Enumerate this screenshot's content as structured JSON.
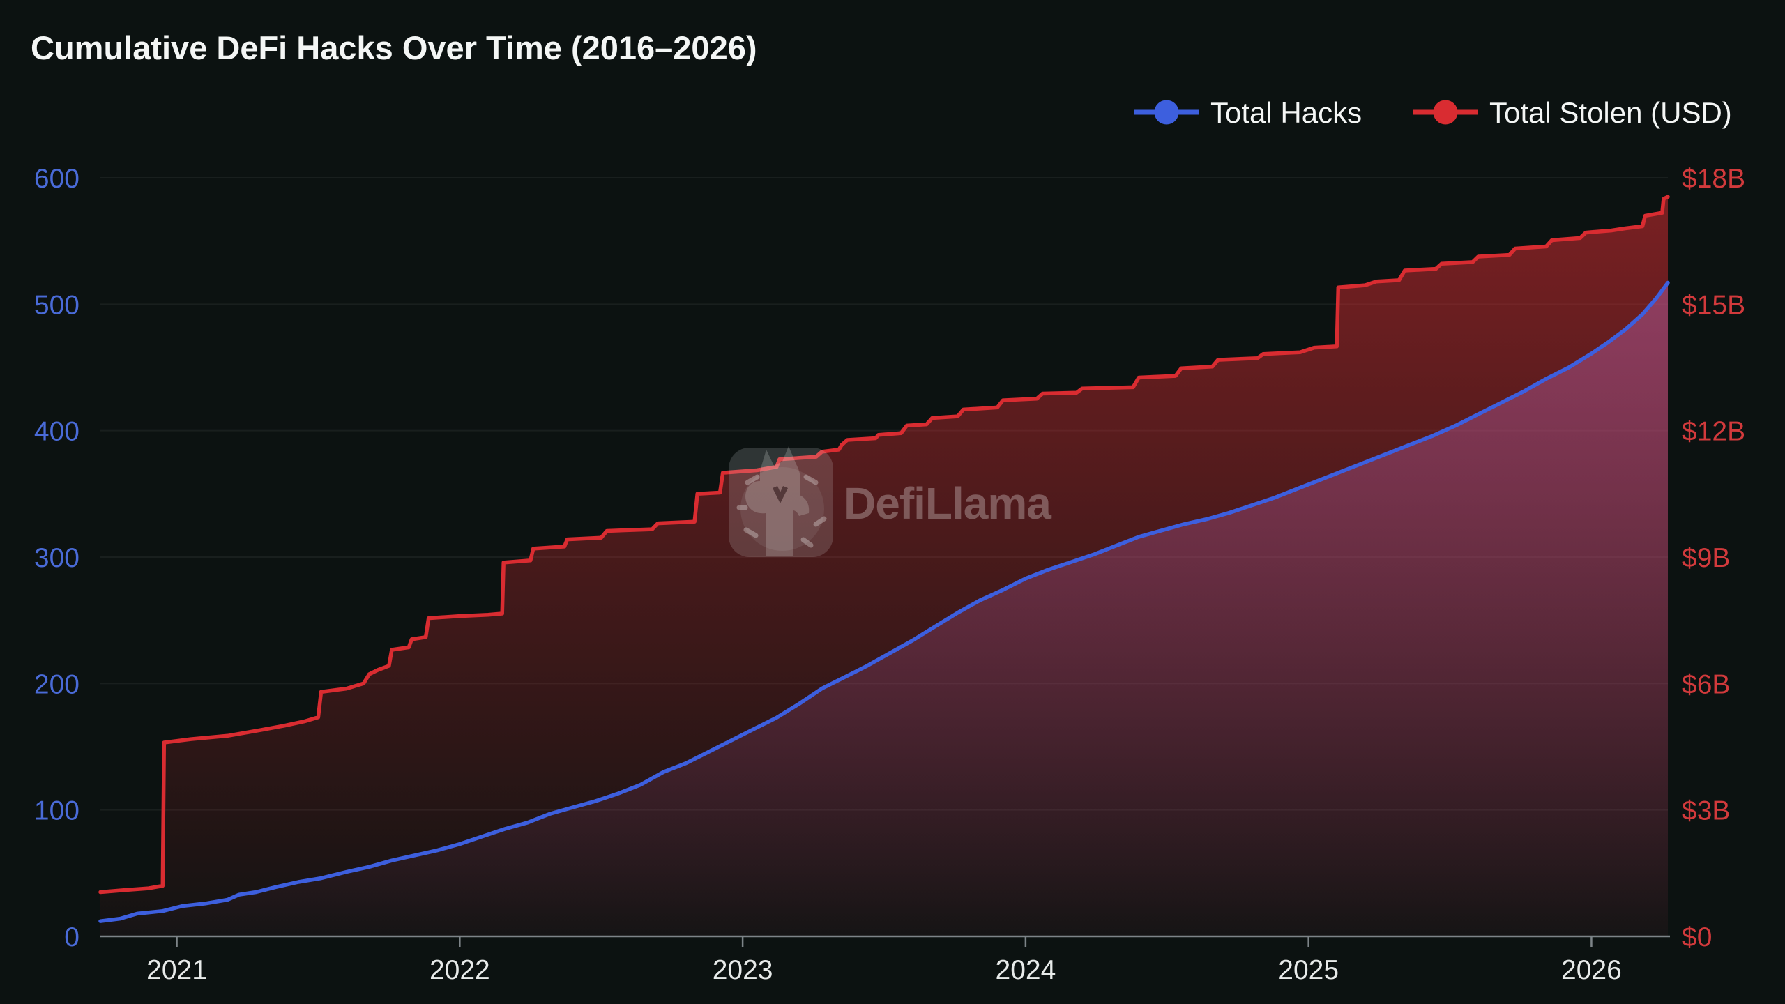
{
  "title": "Cumulative DeFi Hacks Over Time (2016–2026)",
  "watermark": {
    "brand": "DefiLlama",
    "icon": "defillama-llama-logo"
  },
  "legend": {
    "position": "top-right",
    "items": [
      {
        "label": "Total Hacks",
        "color": "#3d5fde",
        "series": "total_hacks"
      },
      {
        "label": "Total Stolen (USD)",
        "color": "#d92c31",
        "series": "total_stolen_usd"
      }
    ]
  },
  "colors": {
    "background": "#0c1211",
    "title_text": "#f4f6f5",
    "x_label_text": "#e8ebea",
    "left_axis_text": "#4a6bd8",
    "right_axis_text": "#d23a3c",
    "axis_line": "#7d8488",
    "gridline": "rgba(255,255,255,0.055)",
    "hacks_line": "#3d5fde",
    "stolen_line": "#d92c31",
    "stolen_fill_top": "rgba(217,44,50,0.55)",
    "stolen_fill_bottom": "rgba(217,44,50,0.03)",
    "hacks_fill_top": "rgba(168,85,144,0.66)",
    "hacks_fill_bottom": "rgba(168,85,144,0.02)"
  },
  "chart_data": {
    "type": "line",
    "title": "Cumulative DeFi Hacks Over Time (2016–2026)",
    "grid": true,
    "legend_position": "top-right",
    "x_axis": {
      "range": [
        2020.73,
        2026.27
      ],
      "ticks": [
        2021,
        2022,
        2023,
        2024,
        2025,
        2026
      ]
    },
    "y_axis_left": {
      "label": "Total Hacks",
      "range": [
        0,
        600
      ],
      "ticks": [
        0,
        100,
        200,
        300,
        400,
        500,
        600
      ]
    },
    "y_axis_right": {
      "label": "Total Stolen (USD)",
      "range": [
        0,
        18
      ],
      "tick_labels": [
        "$0",
        "$3B",
        "$6B",
        "$9B",
        "$12B",
        "$15B",
        "$18B"
      ],
      "tick_values": [
        0,
        3,
        6,
        9,
        12,
        15,
        18
      ]
    },
    "series": [
      {
        "name": "Total Hacks",
        "axis": "left",
        "color": "#3d5fde",
        "style": "line-area",
        "points": [
          [
            2020.73,
            12
          ],
          [
            2020.8,
            14
          ],
          [
            2020.86,
            18
          ],
          [
            2020.95,
            20
          ],
          [
            2021.02,
            24
          ],
          [
            2021.1,
            26
          ],
          [
            2021.18,
            29
          ],
          [
            2021.22,
            33
          ],
          [
            2021.28,
            35
          ],
          [
            2021.35,
            39
          ],
          [
            2021.43,
            43
          ],
          [
            2021.51,
            46
          ],
          [
            2021.6,
            51
          ],
          [
            2021.68,
            55
          ],
          [
            2021.76,
            60
          ],
          [
            2021.84,
            64
          ],
          [
            2021.92,
            68
          ],
          [
            2022.0,
            73
          ],
          [
            2022.08,
            79
          ],
          [
            2022.16,
            85
          ],
          [
            2022.24,
            90
          ],
          [
            2022.32,
            97
          ],
          [
            2022.4,
            102
          ],
          [
            2022.48,
            107
          ],
          [
            2022.56,
            113
          ],
          [
            2022.64,
            120
          ],
          [
            2022.72,
            130
          ],
          [
            2022.8,
            137
          ],
          [
            2022.88,
            146
          ],
          [
            2022.96,
            155
          ],
          [
            2023.04,
            164
          ],
          [
            2023.12,
            173
          ],
          [
            2023.2,
            184
          ],
          [
            2023.28,
            196
          ],
          [
            2023.36,
            205
          ],
          [
            2023.44,
            214
          ],
          [
            2023.52,
            224
          ],
          [
            2023.6,
            234
          ],
          [
            2023.68,
            245
          ],
          [
            2023.76,
            256
          ],
          [
            2023.84,
            266
          ],
          [
            2023.92,
            274
          ],
          [
            2024.0,
            283
          ],
          [
            2024.08,
            290
          ],
          [
            2024.16,
            296
          ],
          [
            2024.24,
            302
          ],
          [
            2024.32,
            309
          ],
          [
            2024.4,
            316
          ],
          [
            2024.48,
            321
          ],
          [
            2024.56,
            326
          ],
          [
            2024.64,
            330
          ],
          [
            2024.72,
            335
          ],
          [
            2024.8,
            341
          ],
          [
            2024.88,
            347
          ],
          [
            2024.96,
            354
          ],
          [
            2025.04,
            361
          ],
          [
            2025.12,
            368
          ],
          [
            2025.2,
            375
          ],
          [
            2025.28,
            382
          ],
          [
            2025.36,
            389
          ],
          [
            2025.44,
            396
          ],
          [
            2025.52,
            404
          ],
          [
            2025.6,
            413
          ],
          [
            2025.68,
            422
          ],
          [
            2025.76,
            431
          ],
          [
            2025.84,
            441
          ],
          [
            2025.92,
            450
          ],
          [
            2026.0,
            461
          ],
          [
            2026.06,
            470
          ],
          [
            2026.12,
            480
          ],
          [
            2026.18,
            492
          ],
          [
            2026.23,
            505
          ],
          [
            2026.27,
            517
          ]
        ]
      },
      {
        "name": "Total Stolen (USD)",
        "axis": "right",
        "color": "#d92c31",
        "style": "step-area",
        "unit": "B",
        "points": [
          [
            2020.73,
            1.05
          ],
          [
            2020.82,
            1.1
          ],
          [
            2020.9,
            1.14
          ],
          [
            2020.95,
            1.2
          ],
          [
            2020.955,
            4.6
          ],
          [
            2021.05,
            4.68
          ],
          [
            2021.18,
            4.76
          ],
          [
            2021.3,
            4.9
          ],
          [
            2021.38,
            5.0
          ],
          [
            2021.45,
            5.1
          ],
          [
            2021.5,
            5.2
          ],
          [
            2021.51,
            5.8
          ],
          [
            2021.6,
            5.88
          ],
          [
            2021.66,
            6.0
          ],
          [
            2021.68,
            6.22
          ],
          [
            2021.71,
            6.32
          ],
          [
            2021.75,
            6.42
          ],
          [
            2021.76,
            6.8
          ],
          [
            2021.82,
            6.86
          ],
          [
            2021.83,
            7.05
          ],
          [
            2021.88,
            7.1
          ],
          [
            2021.89,
            7.55
          ],
          [
            2022.0,
            7.6
          ],
          [
            2022.1,
            7.63
          ],
          [
            2022.15,
            7.66
          ],
          [
            2022.155,
            8.87
          ],
          [
            2022.25,
            8.92
          ],
          [
            2022.26,
            9.2
          ],
          [
            2022.37,
            9.25
          ],
          [
            2022.38,
            9.42
          ],
          [
            2022.5,
            9.46
          ],
          [
            2022.52,
            9.62
          ],
          [
            2022.68,
            9.66
          ],
          [
            2022.7,
            9.8
          ],
          [
            2022.83,
            9.84
          ],
          [
            2022.84,
            10.5
          ],
          [
            2022.92,
            10.53
          ],
          [
            2022.93,
            11.0
          ],
          [
            2023.05,
            11.06
          ],
          [
            2023.12,
            11.14
          ],
          [
            2023.13,
            11.32
          ],
          [
            2023.26,
            11.38
          ],
          [
            2023.28,
            11.5
          ],
          [
            2023.34,
            11.55
          ],
          [
            2023.35,
            11.66
          ],
          [
            2023.37,
            11.78
          ],
          [
            2023.47,
            11.82
          ],
          [
            2023.48,
            11.9
          ],
          [
            2023.56,
            11.94
          ],
          [
            2023.58,
            12.12
          ],
          [
            2023.65,
            12.15
          ],
          [
            2023.67,
            12.3
          ],
          [
            2023.76,
            12.34
          ],
          [
            2023.78,
            12.5
          ],
          [
            2023.9,
            12.55
          ],
          [
            2023.92,
            12.72
          ],
          [
            2024.04,
            12.76
          ],
          [
            2024.06,
            12.88
          ],
          [
            2024.18,
            12.9
          ],
          [
            2024.2,
            13.0
          ],
          [
            2024.38,
            13.03
          ],
          [
            2024.4,
            13.26
          ],
          [
            2024.53,
            13.3
          ],
          [
            2024.55,
            13.48
          ],
          [
            2024.66,
            13.52
          ],
          [
            2024.68,
            13.68
          ],
          [
            2024.82,
            13.72
          ],
          [
            2024.84,
            13.82
          ],
          [
            2024.97,
            13.86
          ],
          [
            2025.02,
            13.97
          ],
          [
            2025.1,
            14.0
          ],
          [
            2025.105,
            15.4
          ],
          [
            2025.2,
            15.45
          ],
          [
            2025.24,
            15.54
          ],
          [
            2025.32,
            15.57
          ],
          [
            2025.34,
            15.8
          ],
          [
            2025.45,
            15.84
          ],
          [
            2025.47,
            15.96
          ],
          [
            2025.58,
            16.0
          ],
          [
            2025.6,
            16.13
          ],
          [
            2025.71,
            16.17
          ],
          [
            2025.73,
            16.32
          ],
          [
            2025.84,
            16.37
          ],
          [
            2025.86,
            16.52
          ],
          [
            2025.96,
            16.57
          ],
          [
            2025.98,
            16.7
          ],
          [
            2026.07,
            16.75
          ],
          [
            2026.12,
            16.8
          ],
          [
            2026.18,
            16.85
          ],
          [
            2026.19,
            17.1
          ],
          [
            2026.25,
            17.17
          ],
          [
            2026.255,
            17.5
          ],
          [
            2026.27,
            17.55
          ]
        ]
      }
    ]
  }
}
